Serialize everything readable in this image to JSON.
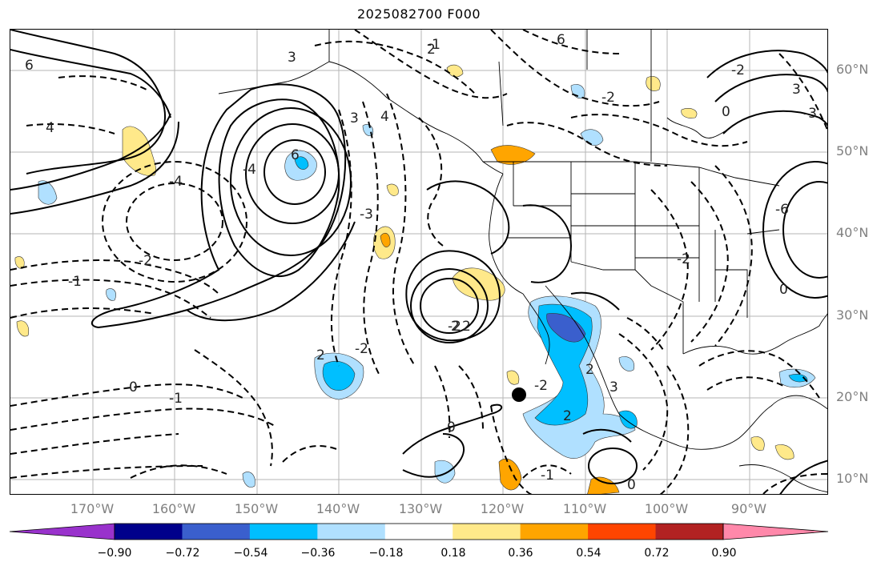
{
  "title": "2025082700 F000",
  "lat_labels": [
    "60°N",
    "50°N",
    "40°N",
    "30°N",
    "20°N",
    "10°N"
  ],
  "lon_labels": [
    "170°W",
    "160°W",
    "150°W",
    "140°W",
    "130°W",
    "120°W",
    "110°W",
    "100°W",
    "90°W"
  ],
  "colorbar": {
    "ticks": [
      "−0.90",
      "−0.72",
      "−0.54",
      "−0.36",
      "−0.18",
      "0.18",
      "0.36",
      "0.54",
      "0.72",
      "0.90"
    ],
    "colors": [
      "#9932cc",
      "#00008b",
      "#3a5fcd",
      "#00bfff",
      "#b0e0ff",
      "#ffffff",
      "#ffe98a",
      "#ffa500",
      "#ff4500",
      "#b22222",
      "#ff88aa"
    ]
  },
  "contour_labels": [
    "6",
    "3",
    "6",
    "0",
    "-1",
    "2",
    "-2",
    "4",
    "3",
    "6",
    "-4",
    "-2",
    "3",
    "-3",
    "4",
    "-4",
    "2",
    "-2",
    "-1",
    "0",
    "-1",
    "2",
    "-2",
    "2",
    "-2",
    "0",
    "-1",
    "0",
    "-2",
    "-6",
    "-3",
    "-2",
    "2",
    "3",
    "0",
    "2"
  ]
}
